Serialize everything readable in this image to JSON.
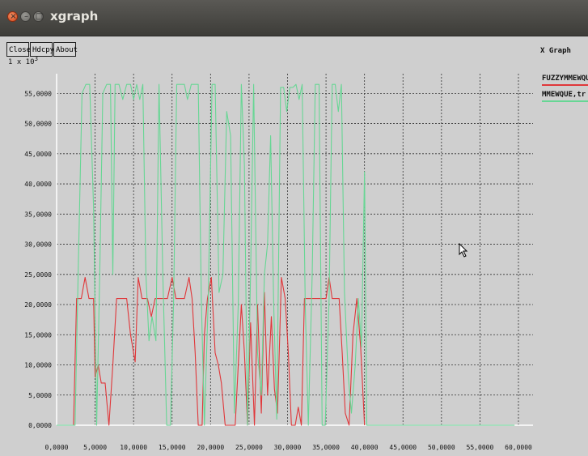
{
  "window": {
    "title": "xgraph",
    "titlebar_buttons": [
      "close",
      "minimize",
      "maximize"
    ]
  },
  "toolbar": {
    "close_label": "Close",
    "hdcpy_label": "Hdcpy",
    "about_label": "About"
  },
  "scale_label": "1 x 10^3",
  "graph_title": "X Graph",
  "colors": {
    "series1": "#e0373a",
    "series2": "#67d694",
    "grid": "#333333",
    "axis": "#ffffff",
    "background": "#cfcfcf"
  },
  "chart_data": {
    "type": "line",
    "title": "X Graph",
    "xlabel": "",
    "ylabel": "",
    "xlim": [
      0,
      60
    ],
    "ylim": [
      0,
      58
    ],
    "xticks": [
      "0,0000",
      "5,0000",
      "10,0000",
      "15,0000",
      "20,0000",
      "25,0000",
      "30,0000",
      "35,0000",
      "40,0000",
      "45,0000",
      "50,0000",
      "55,0000",
      "60,0000"
    ],
    "yticks": [
      "0,0000",
      "5,0000",
      "10,0000",
      "15,0000",
      "20,0000",
      "25,0000",
      "30,0000",
      "35,0000",
      "40,0000",
      "45,0000",
      "50,0000",
      "55,0000"
    ],
    "grid": true,
    "legend": "right",
    "series": [
      {
        "name": "FUZZYMMEWQUE,",
        "points": [
          [
            0,
            0
          ],
          [
            2.2,
            0
          ],
          [
            2.6,
            21
          ],
          [
            3.2,
            21
          ],
          [
            3.7,
            24.5
          ],
          [
            4.2,
            21
          ],
          [
            4.8,
            21
          ],
          [
            5,
            8
          ],
          [
            5.4,
            10
          ],
          [
            5.8,
            7
          ],
          [
            6.3,
            7
          ],
          [
            6.8,
            0
          ],
          [
            7.3,
            10
          ],
          [
            7.8,
            21
          ],
          [
            8.6,
            21
          ],
          [
            9.1,
            21
          ],
          [
            9.6,
            15
          ],
          [
            10.2,
            10.5
          ],
          [
            10.6,
            24.5
          ],
          [
            11.1,
            21
          ],
          [
            11.8,
            21
          ],
          [
            12.3,
            18
          ],
          [
            12.8,
            21
          ],
          [
            13.6,
            21
          ],
          [
            14.4,
            21
          ],
          [
            15,
            24.5
          ],
          [
            15.5,
            21
          ],
          [
            16.2,
            21
          ],
          [
            16.6,
            21
          ],
          [
            17.2,
            24.5
          ],
          [
            17.6,
            21
          ],
          [
            18,
            12
          ],
          [
            18.4,
            0
          ],
          [
            18.9,
            0
          ],
          [
            19.2,
            15
          ],
          [
            19.6,
            21
          ],
          [
            20.1,
            24.5
          ],
          [
            20.6,
            12
          ],
          [
            21,
            10
          ],
          [
            21.4,
            7
          ],
          [
            21.9,
            0
          ],
          [
            22.7,
            0
          ],
          [
            23.2,
            0
          ],
          [
            23.6,
            10
          ],
          [
            24,
            20
          ],
          [
            24.4,
            12
          ],
          [
            24.8,
            0
          ],
          [
            25.2,
            17
          ],
          [
            25.7,
            0
          ],
          [
            26.1,
            20
          ],
          [
            26.6,
            2
          ],
          [
            27,
            22
          ],
          [
            27.4,
            5
          ],
          [
            27.9,
            18
          ],
          [
            28.3,
            6
          ],
          [
            28.7,
            2
          ],
          [
            29.2,
            24.5
          ],
          [
            29.7,
            21
          ],
          [
            30.1,
            12
          ],
          [
            30.5,
            0
          ],
          [
            31,
            0
          ],
          [
            31.4,
            3
          ],
          [
            31.8,
            0
          ],
          [
            32.2,
            21
          ],
          [
            32.7,
            21
          ],
          [
            33.3,
            21
          ],
          [
            34,
            21
          ],
          [
            34.6,
            21
          ],
          [
            35,
            21
          ],
          [
            35.4,
            24.5
          ],
          [
            35.8,
            21
          ],
          [
            36.2,
            21
          ],
          [
            36.7,
            21
          ],
          [
            37.1,
            12
          ],
          [
            37.5,
            2
          ],
          [
            38,
            0
          ],
          [
            38.5,
            15
          ],
          [
            39,
            21
          ],
          [
            39.5,
            13
          ],
          [
            40,
            0
          ]
        ]
      },
      {
        "name": "MMEWQUE,tr",
        "points": [
          [
            0,
            0
          ],
          [
            2,
            0
          ],
          [
            2.4,
            0
          ],
          [
            2.8,
            25
          ],
          [
            3.3,
            55
          ],
          [
            3.8,
            56.5
          ],
          [
            4.3,
            56.5
          ],
          [
            4.8,
            36
          ],
          [
            5.2,
            0
          ],
          [
            5.6,
            25
          ],
          [
            6,
            55
          ],
          [
            6.5,
            56.5
          ],
          [
            7,
            56.5
          ],
          [
            7.3,
            25
          ],
          [
            7.6,
            56.5
          ],
          [
            8.1,
            56.5
          ],
          [
            8.6,
            54
          ],
          [
            9.1,
            56.5
          ],
          [
            9.6,
            56.5
          ],
          [
            10,
            54
          ],
          [
            10.4,
            56.5
          ],
          [
            10.8,
            54
          ],
          [
            11.2,
            56.5
          ],
          [
            11.6,
            25
          ],
          [
            12,
            14
          ],
          [
            12.4,
            18
          ],
          [
            12.9,
            14
          ],
          [
            13.3,
            56.5
          ],
          [
            13.8,
            25
          ],
          [
            14.3,
            0
          ],
          [
            14.8,
            0
          ],
          [
            15.2,
            21
          ],
          [
            15.6,
            56.5
          ],
          [
            16.1,
            56.5
          ],
          [
            16.6,
            56.5
          ],
          [
            17,
            54
          ],
          [
            17.5,
            56.5
          ],
          [
            18,
            56.5
          ],
          [
            18.4,
            56.5
          ],
          [
            18.8,
            21
          ],
          [
            19.2,
            0
          ],
          [
            19.7,
            21
          ],
          [
            20.2,
            56.5
          ],
          [
            20.6,
            56.5
          ],
          [
            21.1,
            22
          ],
          [
            21.6,
            25
          ],
          [
            22.1,
            52
          ],
          [
            22.6,
            48
          ],
          [
            23.1,
            2
          ],
          [
            23.6,
            20
          ],
          [
            24,
            56.5
          ],
          [
            24.4,
            43
          ],
          [
            24.8,
            0
          ],
          [
            25.2,
            25
          ],
          [
            25.6,
            56.5
          ],
          [
            26.1,
            12
          ],
          [
            26.6,
            5
          ],
          [
            27,
            25
          ],
          [
            27.4,
            30
          ],
          [
            27.8,
            48
          ],
          [
            28.2,
            20
          ],
          [
            28.6,
            1
          ],
          [
            29.1,
            56
          ],
          [
            29.5,
            56
          ],
          [
            29.9,
            52
          ],
          [
            30.3,
            56
          ],
          [
            30.7,
            56
          ],
          [
            31.1,
            56.5
          ],
          [
            31.5,
            54
          ],
          [
            31.9,
            56.5
          ],
          [
            32.3,
            20
          ],
          [
            32.7,
            0
          ],
          [
            33.2,
            25
          ],
          [
            33.6,
            56.5
          ],
          [
            34.1,
            56.5
          ],
          [
            34.5,
            0
          ],
          [
            34.9,
            0
          ],
          [
            35.4,
            21
          ],
          [
            35.8,
            56.5
          ],
          [
            36.2,
            56.5
          ],
          [
            36.6,
            52
          ],
          [
            37,
            56.5
          ],
          [
            37.4,
            22
          ],
          [
            37.9,
            8
          ],
          [
            38.3,
            2
          ],
          [
            38.8,
            10
          ],
          [
            39.2,
            21
          ],
          [
            39.6,
            13
          ],
          [
            40,
            42
          ],
          [
            40.3,
            0
          ],
          [
            45,
            0
          ],
          [
            50,
            0
          ],
          [
            55,
            0
          ],
          [
            59.5,
            0
          ]
        ]
      }
    ]
  }
}
